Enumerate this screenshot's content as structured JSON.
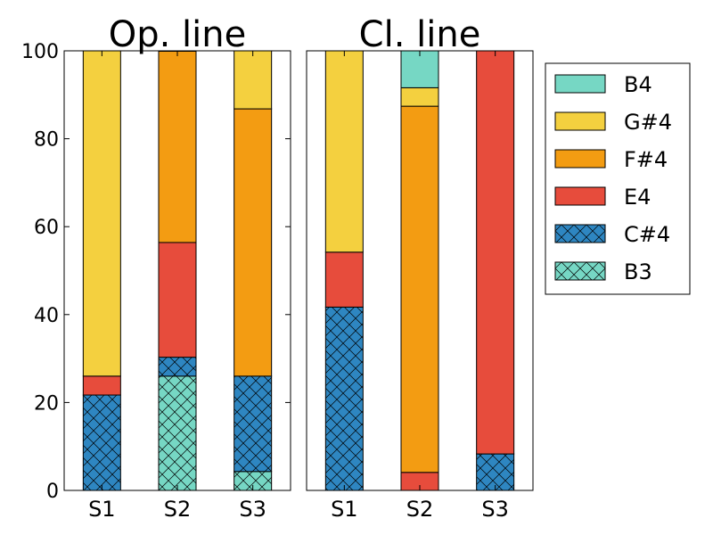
{
  "chart_data": [
    {
      "type": "bar",
      "stacked": true,
      "title": "Op. line",
      "categories": [
        "S1",
        "S2",
        "S3"
      ],
      "ylim": [
        0,
        100
      ],
      "yticks": [
        0,
        20,
        40,
        60,
        80,
        100
      ],
      "series": [
        {
          "name": "B3",
          "values": [
            0,
            26,
            4.3
          ]
        },
        {
          "name": "C#4",
          "values": [
            21.7,
            4.3,
            21.7
          ]
        },
        {
          "name": "E4",
          "values": [
            4.3,
            26.1,
            0
          ]
        },
        {
          "name": "F#4",
          "values": [
            0,
            43.5,
            60.8
          ]
        },
        {
          "name": "G#4",
          "values": [
            74,
            0,
            13.2
          ]
        },
        {
          "name": "B4",
          "values": [
            0,
            0,
            0
          ]
        }
      ]
    },
    {
      "type": "bar",
      "stacked": true,
      "title": "Cl. line",
      "categories": [
        "S1",
        "S2",
        "S3"
      ],
      "ylim": [
        0,
        100
      ],
      "yticks": [],
      "series": [
        {
          "name": "B3",
          "values": [
            0,
            0,
            0
          ]
        },
        {
          "name": "C#4",
          "values": [
            41.7,
            0,
            8.3
          ]
        },
        {
          "name": "E4",
          "values": [
            12.5,
            4.1,
            91.7
          ]
        },
        {
          "name": "F#4",
          "values": [
            0,
            83.3,
            0
          ]
        },
        {
          "name": "G#4",
          "values": [
            45.8,
            4.2,
            0
          ]
        },
        {
          "name": "B4",
          "values": [
            0,
            8.4,
            0
          ]
        }
      ]
    }
  ],
  "legend": {
    "placement": "right",
    "entries": [
      {
        "name": "B4",
        "color": "#76d7c4",
        "hatch": false
      },
      {
        "name": "G#4",
        "color": "#f4d03f",
        "hatch": false
      },
      {
        "name": "F#4",
        "color": "#f39c12",
        "hatch": false
      },
      {
        "name": "E4",
        "color": "#e74c3c",
        "hatch": false
      },
      {
        "name": "C#4",
        "color": "#2e86c1",
        "hatch": true
      },
      {
        "name": "B3",
        "color": "#76d7c4",
        "hatch": true
      }
    ]
  }
}
